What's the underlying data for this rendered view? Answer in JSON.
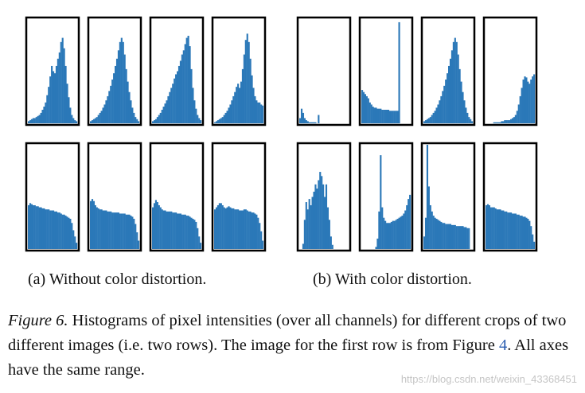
{
  "figure": {
    "number_label": "Figure 6.",
    "caption_part1": "Histograms of pixel intensities (over all channels) for different crops of two different images (i.e. two rows). The image for the first row is from Figure",
    "figure_ref": "4",
    "caption_part2": ". All axes have the same range.",
    "subcaption_a": "(a) Without color distortion.",
    "subcaption_b": "(b) With color distortion."
  },
  "watermark": "https://blog.csdn.net/weixin_43368451",
  "colors": {
    "bar": "#2b78b8",
    "frame": "#000000"
  },
  "chart_data": {
    "type": "histogram-grid",
    "rows": 2,
    "cols": 8,
    "bins": 32,
    "x_range": [
      0,
      1
    ],
    "y_range": [
      0,
      1
    ],
    "note": "All axes have the same range; values are normalized relative heights per bin.",
    "panels": [
      {
        "group": "a",
        "row": 0,
        "col": 0,
        "values": [
          0.02,
          0.03,
          0.04,
          0.05,
          0.05,
          0.06,
          0.07,
          0.08,
          0.1,
          0.13,
          0.16,
          0.2,
          0.27,
          0.35,
          0.45,
          0.55,
          0.5,
          0.48,
          0.55,
          0.62,
          0.68,
          0.78,
          0.82,
          0.72,
          0.55,
          0.38,
          0.25,
          0.15,
          0.08,
          0.05,
          0.03,
          0.02
        ]
      },
      {
        "group": "a",
        "row": 0,
        "col": 1,
        "values": [
          0.02,
          0.03,
          0.04,
          0.05,
          0.06,
          0.08,
          0.1,
          0.12,
          0.15,
          0.18,
          0.22,
          0.26,
          0.31,
          0.36,
          0.42,
          0.48,
          0.55,
          0.62,
          0.7,
          0.78,
          0.82,
          0.78,
          0.66,
          0.52,
          0.4,
          0.3,
          0.22,
          0.15,
          0.1,
          0.06,
          0.04,
          0.02
        ]
      },
      {
        "group": "a",
        "row": 0,
        "col": 2,
        "values": [
          0.02,
          0.03,
          0.04,
          0.06,
          0.08,
          0.1,
          0.13,
          0.16,
          0.19,
          0.22,
          0.26,
          0.3,
          0.34,
          0.38,
          0.43,
          0.47,
          0.5,
          0.55,
          0.6,
          0.66,
          0.7,
          0.76,
          0.82,
          0.84,
          0.74,
          0.52,
          0.34,
          0.22,
          0.14,
          0.08,
          0.05,
          0.03
        ]
      },
      {
        "group": "a",
        "row": 0,
        "col": 3,
        "values": [
          0.01,
          0.02,
          0.03,
          0.04,
          0.05,
          0.06,
          0.08,
          0.1,
          0.12,
          0.15,
          0.18,
          0.22,
          0.26,
          0.3,
          0.35,
          0.38,
          0.34,
          0.4,
          0.52,
          0.66,
          0.8,
          0.86,
          0.78,
          0.62,
          0.46,
          0.34,
          0.26,
          0.22,
          0.2,
          0.2,
          0.18,
          0.17
        ]
      },
      {
        "group": "a",
        "row": 1,
        "col": 0,
        "values": [
          0.42,
          0.44,
          0.43,
          0.42,
          0.42,
          0.41,
          0.41,
          0.4,
          0.4,
          0.39,
          0.39,
          0.38,
          0.38,
          0.38,
          0.37,
          0.37,
          0.37,
          0.36,
          0.36,
          0.35,
          0.35,
          0.34,
          0.33,
          0.33,
          0.32,
          0.31,
          0.3,
          0.29,
          0.25,
          0.18,
          0.12,
          0.06
        ]
      },
      {
        "group": "a",
        "row": 1,
        "col": 1,
        "values": [
          0.46,
          0.48,
          0.46,
          0.42,
          0.4,
          0.39,
          0.38,
          0.38,
          0.37,
          0.37,
          0.37,
          0.36,
          0.36,
          0.36,
          0.35,
          0.35,
          0.35,
          0.35,
          0.35,
          0.34,
          0.34,
          0.34,
          0.34,
          0.33,
          0.33,
          0.33,
          0.32,
          0.31,
          0.29,
          0.24,
          0.16,
          0.08
        ]
      },
      {
        "group": "a",
        "row": 1,
        "col": 2,
        "values": [
          0.4,
          0.44,
          0.47,
          0.45,
          0.42,
          0.4,
          0.38,
          0.37,
          0.37,
          0.36,
          0.36,
          0.36,
          0.36,
          0.35,
          0.35,
          0.35,
          0.34,
          0.34,
          0.34,
          0.33,
          0.33,
          0.33,
          0.32,
          0.32,
          0.31,
          0.3,
          0.29,
          0.28,
          0.26,
          0.2,
          0.12,
          0.06
        ]
      },
      {
        "group": "a",
        "row": 1,
        "col": 3,
        "values": [
          0.38,
          0.4,
          0.42,
          0.44,
          0.44,
          0.42,
          0.4,
          0.39,
          0.4,
          0.41,
          0.4,
          0.39,
          0.39,
          0.38,
          0.38,
          0.38,
          0.37,
          0.37,
          0.37,
          0.38,
          0.38,
          0.37,
          0.36,
          0.36,
          0.35,
          0.35,
          0.34,
          0.33,
          0.3,
          0.25,
          0.17,
          0.08
        ]
      },
      {
        "group": "b",
        "row": 0,
        "col": 0,
        "values": [
          0.05,
          0.14,
          0.1,
          0.05,
          0.03,
          0.02,
          0.01,
          0.01,
          0.01,
          0.01,
          0.01,
          0.0,
          0.08,
          0.0,
          0.0,
          0.0,
          0.0,
          0.0,
          0.0,
          0.0,
          0.0,
          0.0,
          0.0,
          0.0,
          0.0,
          0.0,
          0.0,
          0.0,
          0.0,
          0.0,
          0.0,
          0.0
        ]
      },
      {
        "group": "b",
        "row": 0,
        "col": 1,
        "values": [
          0.32,
          0.3,
          0.28,
          0.26,
          0.24,
          0.2,
          0.18,
          0.16,
          0.15,
          0.15,
          0.14,
          0.14,
          0.14,
          0.13,
          0.13,
          0.13,
          0.13,
          0.13,
          0.12,
          0.12,
          0.12,
          0.12,
          0.12,
          0.12,
          0.97,
          0.0,
          0.0,
          0.0,
          0.0,
          0.0,
          0.0,
          0.0
        ]
      },
      {
        "group": "b",
        "row": 0,
        "col": 2,
        "values": [
          0.02,
          0.03,
          0.04,
          0.05,
          0.06,
          0.08,
          0.1,
          0.12,
          0.15,
          0.18,
          0.22,
          0.26,
          0.31,
          0.36,
          0.42,
          0.48,
          0.55,
          0.62,
          0.7,
          0.78,
          0.82,
          0.78,
          0.66,
          0.52,
          0.4,
          0.3,
          0.22,
          0.15,
          0.1,
          0.06,
          0.04,
          0.02
        ]
      },
      {
        "group": "b",
        "row": 0,
        "col": 3,
        "values": [
          0.0,
          0.0,
          0.0,
          0.0,
          0.0,
          0.01,
          0.01,
          0.01,
          0.01,
          0.01,
          0.02,
          0.02,
          0.03,
          0.03,
          0.03,
          0.03,
          0.04,
          0.05,
          0.06,
          0.08,
          0.12,
          0.18,
          0.26,
          0.34,
          0.42,
          0.45,
          0.44,
          0.4,
          0.38,
          0.42,
          0.45,
          0.47
        ]
      },
      {
        "group": "b",
        "row": 1,
        "col": 0,
        "values": [
          0.0,
          0.0,
          0.05,
          0.28,
          0.45,
          0.38,
          0.48,
          0.42,
          0.5,
          0.55,
          0.62,
          0.58,
          0.66,
          0.74,
          0.7,
          0.62,
          0.5,
          0.62,
          0.4,
          0.28,
          0.12,
          0.04,
          0.0,
          0.0,
          0.0,
          0.0,
          0.0,
          0.0,
          0.0,
          0.0,
          0.0,
          0.0
        ]
      },
      {
        "group": "b",
        "row": 1,
        "col": 1,
        "values": [
          0.0,
          0.0,
          0.0,
          0.0,
          0.0,
          0.0,
          0.0,
          0.0,
          0.0,
          0.02,
          0.1,
          0.36,
          0.9,
          0.4,
          0.3,
          0.27,
          0.25,
          0.25,
          0.25,
          0.26,
          0.27,
          0.27,
          0.28,
          0.29,
          0.3,
          0.31,
          0.32,
          0.34,
          0.37,
          0.42,
          0.48,
          0.52
        ]
      },
      {
        "group": "b",
        "row": 1,
        "col": 2,
        "values": [
          0.12,
          0.3,
          1.0,
          0.6,
          0.42,
          0.36,
          0.32,
          0.3,
          0.29,
          0.28,
          0.27,
          0.26,
          0.25,
          0.25,
          0.24,
          0.24,
          0.24,
          0.24,
          0.23,
          0.23,
          0.23,
          0.22,
          0.22,
          0.22,
          0.22,
          0.22,
          0.21,
          0.21,
          0.2,
          0.2,
          0.0,
          0.0
        ]
      },
      {
        "group": "b",
        "row": 1,
        "col": 3,
        "values": [
          0.42,
          0.43,
          0.42,
          0.4,
          0.4,
          0.4,
          0.39,
          0.38,
          0.38,
          0.38,
          0.37,
          0.37,
          0.36,
          0.36,
          0.35,
          0.35,
          0.35,
          0.34,
          0.34,
          0.34,
          0.33,
          0.33,
          0.32,
          0.32,
          0.31,
          0.31,
          0.3,
          0.29,
          0.27,
          0.22,
          0.14,
          0.07
        ]
      }
    ]
  }
}
